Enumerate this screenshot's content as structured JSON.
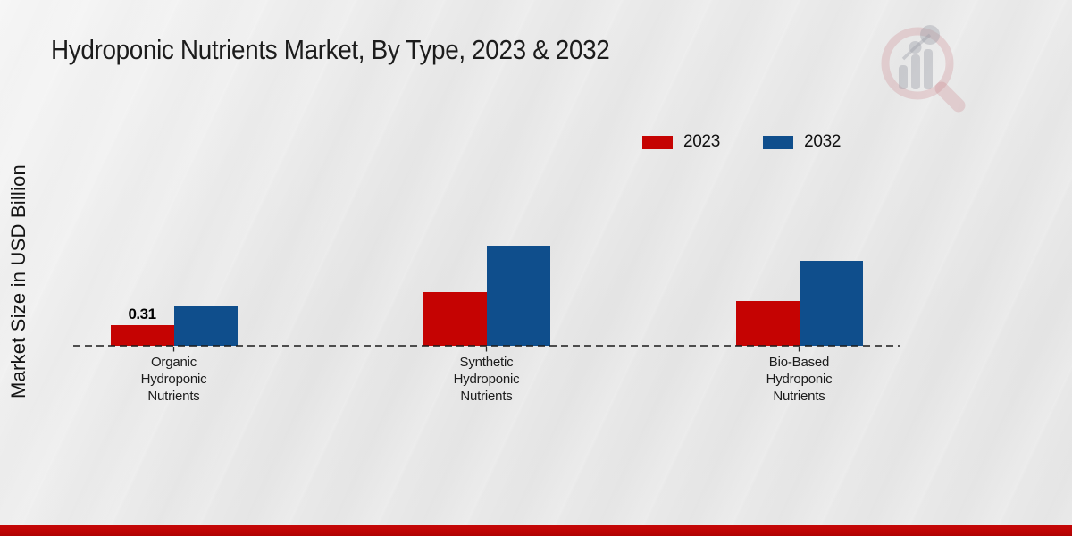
{
  "page": {
    "background_color": "#e8e8e8",
    "footer_accent_color": "#bf0505"
  },
  "icons": {
    "watermark": "magnifier-bar-chart-logo"
  },
  "chart_data": {
    "type": "bar",
    "title": "Hydroponic Nutrients Market, By Type, 2023 & 2032",
    "ylabel": "Market Size in USD Billion",
    "xlabel": "",
    "categories": [
      "Organic\nHydroponic\nNutrients",
      "Synthetic\nHydroponic\nNutrients",
      "Bio-Based\nHydroponic\nNutrients"
    ],
    "series": [
      {
        "name": "2023",
        "color": "#c50302",
        "values": [
          0.31,
          0.82,
          0.68
        ],
        "labels": [
          "0.31",
          "",
          ""
        ]
      },
      {
        "name": "2032",
        "color": "#0f4e8c",
        "values": [
          0.62,
          1.53,
          1.3
        ],
        "labels": [
          "",
          "",
          ""
        ]
      }
    ],
    "ylim": [
      0,
      1.7
    ],
    "grid": false,
    "legend_position": "top-right",
    "baseline_style": "dashed",
    "y_axis_ticks_visible": false
  }
}
